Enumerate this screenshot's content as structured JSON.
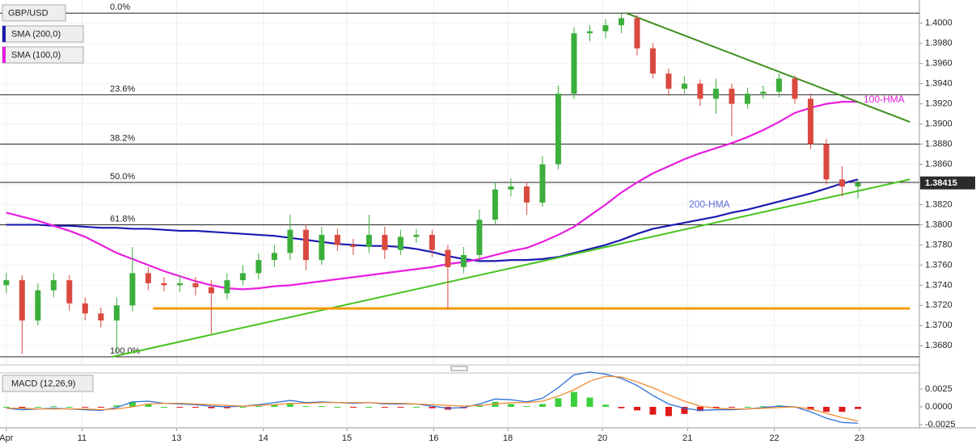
{
  "chart_data": [
    {
      "type": "candlestick",
      "symbol": "GBP/USD",
      "xlim": [
        -0.4,
        57.9
      ],
      "ylim": [
        1.3661,
        1.4023
      ],
      "yticks": [
        {
          "value": 1.4,
          "label": "1.4000"
        },
        {
          "value": 1.398,
          "label": "1.3980"
        },
        {
          "value": 1.396,
          "label": "1.3960"
        },
        {
          "value": 1.394,
          "label": "1.3940"
        },
        {
          "value": 1.392,
          "label": "1.3920"
        },
        {
          "value": 1.39,
          "label": "1.3900"
        },
        {
          "value": 1.388,
          "label": "1.3880"
        },
        {
          "value": 1.386,
          "label": "1.3860"
        },
        {
          "value": 1.384,
          "label": "1.3840"
        },
        {
          "value": 1.382,
          "label": "1.3820"
        },
        {
          "value": 1.38,
          "label": "1.3800"
        },
        {
          "value": 1.378,
          "label": "1.3780"
        },
        {
          "value": 1.376,
          "label": "1.3760"
        },
        {
          "value": 1.374,
          "label": "1.3740"
        },
        {
          "value": 1.372,
          "label": "1.3720"
        },
        {
          "value": 1.37,
          "label": "1.3700"
        },
        {
          "value": 1.368,
          "label": "1.3680"
        }
      ],
      "grid": true,
      "up_color": "#3cae3c",
      "down_color": "#d9493f",
      "candles": {
        "open": [
          1.374,
          1.3745,
          1.3705,
          1.3735,
          1.3745,
          1.3722,
          1.3712,
          1.3705,
          1.372,
          1.3752,
          1.3742,
          1.374,
          1.3742,
          1.3738,
          1.3732,
          1.3745,
          1.3752,
          1.3765,
          1.3772,
          1.3795,
          1.3765,
          1.379,
          1.378,
          1.3778,
          1.379,
          1.3775,
          1.3788,
          1.379,
          1.3775,
          1.3758,
          1.377,
          1.3805,
          1.3835,
          1.3838,
          1.3822,
          1.386,
          1.393,
          1.399,
          1.3992,
          1.3998,
          1.4005,
          1.3975,
          1.395,
          1.3935,
          1.394,
          1.3925,
          1.3935,
          1.392,
          1.393,
          1.3932,
          1.3945,
          1.3925,
          1.388,
          1.3845,
          1.3838
        ],
        "high": [
          1.3752,
          1.375,
          1.3742,
          1.3752,
          1.375,
          1.3728,
          1.3718,
          1.3728,
          1.3778,
          1.3758,
          1.3748,
          1.375,
          1.3748,
          1.3745,
          1.3752,
          1.376,
          1.3772,
          1.378,
          1.381,
          1.38,
          1.3798,
          1.3796,
          1.3786,
          1.381,
          1.3798,
          1.3795,
          1.3796,
          1.3795,
          1.378,
          1.3778,
          1.3815,
          1.3842,
          1.3846,
          1.3842,
          1.3868,
          1.3938,
          1.3996,
          1.3998,
          1.4004,
          1.401,
          1.4008,
          1.398,
          1.3955,
          1.3948,
          1.3944,
          1.3945,
          1.394,
          1.3936,
          1.3938,
          1.395,
          1.3948,
          1.393,
          1.3885,
          1.3858,
          1.3845
        ],
        "low": [
          1.3732,
          1.3672,
          1.37,
          1.3728,
          1.3715,
          1.3705,
          1.3698,
          1.3673,
          1.3714,
          1.3735,
          1.3734,
          1.3733,
          1.373,
          1.3692,
          1.3726,
          1.374,
          1.3746,
          1.3758,
          1.3765,
          1.3755,
          1.376,
          1.3774,
          1.377,
          1.3772,
          1.3766,
          1.377,
          1.3782,
          1.3768,
          1.3716,
          1.3752,
          1.3765,
          1.38,
          1.3828,
          1.381,
          1.3818,
          1.3855,
          1.3925,
          1.3982,
          1.3985,
          1.399,
          1.3968,
          1.3945,
          1.3928,
          1.393,
          1.3918,
          1.391,
          1.3888,
          1.3915,
          1.3925,
          1.3926,
          1.392,
          1.3875,
          1.384,
          1.3828,
          1.3826
        ],
        "close": [
          1.3745,
          1.3705,
          1.3735,
          1.3745,
          1.3722,
          1.3712,
          1.3705,
          1.372,
          1.3752,
          1.3742,
          1.374,
          1.3742,
          1.3738,
          1.3732,
          1.3745,
          1.3752,
          1.3765,
          1.3772,
          1.3795,
          1.3765,
          1.379,
          1.378,
          1.3778,
          1.379,
          1.3775,
          1.3788,
          1.379,
          1.3775,
          1.3758,
          1.377,
          1.3805,
          1.3835,
          1.3838,
          1.3822,
          1.386,
          1.393,
          1.399,
          1.3992,
          1.3998,
          1.4005,
          1.3975,
          1.395,
          1.3935,
          1.394,
          1.3925,
          1.3935,
          1.392,
          1.393,
          1.3932,
          1.3945,
          1.3925,
          1.388,
          1.3845,
          1.3838,
          1.38415
        ]
      },
      "series": [
        {
          "name": "SMA (200,0)",
          "color": "#1a1ab0",
          "values": [
            1.38,
            1.38,
            1.38,
            1.3799,
            1.3799,
            1.3798,
            1.3797,
            1.3797,
            1.3796,
            1.3796,
            1.3795,
            1.3794,
            1.3794,
            1.3793,
            1.3792,
            1.3791,
            1.379,
            1.3789,
            1.3787,
            1.3785,
            1.3783,
            1.3781,
            1.378,
            1.3779,
            1.3779,
            1.3778,
            1.3776,
            1.3773,
            1.3769,
            1.3766,
            1.3764,
            1.3764,
            1.3765,
            1.3765,
            1.3766,
            1.3768,
            1.3772,
            1.3776,
            1.378,
            1.3785,
            1.3791,
            1.3796,
            1.3799,
            1.3802,
            1.3805,
            1.3808,
            1.3812,
            1.3815,
            1.3819,
            1.3823,
            1.3827,
            1.3831,
            1.3836,
            1.3841,
            1.3845
          ]
        },
        {
          "name": "SMA (100,0)",
          "color": "#e81ee0",
          "values": [
            1.3812,
            1.3808,
            1.3804,
            1.3799,
            1.3794,
            1.3788,
            1.378,
            1.3772,
            1.3766,
            1.376,
            1.3754,
            1.3749,
            1.3744,
            1.374,
            1.3737,
            1.3736,
            1.3737,
            1.3739,
            1.374,
            1.3742,
            1.3744,
            1.3746,
            1.3748,
            1.375,
            1.3752,
            1.3754,
            1.3756,
            1.3758,
            1.3761,
            1.3763,
            1.3766,
            1.377,
            1.3774,
            1.3777,
            1.3783,
            1.379,
            1.3798,
            1.3809,
            1.382,
            1.3832,
            1.3842,
            1.3851,
            1.3858,
            1.3865,
            1.3871,
            1.3876,
            1.3881,
            1.3887,
            1.3894,
            1.3902,
            1.3911,
            1.3916,
            1.392,
            1.3922,
            1.3922
          ]
        }
      ],
      "fib_levels": [
        {
          "label": "0.0%",
          "value": 1.401
        },
        {
          "label": "23.6%",
          "value": 1.3929
        },
        {
          "label": "38.2%",
          "value": 1.388
        },
        {
          "label": "50.0%",
          "value": 1.3842
        },
        {
          "label": "61.8%",
          "value": 1.38
        },
        {
          "label": "100.0%",
          "value": 1.3669
        }
      ],
      "trendlines": [
        {
          "color": "#3f8f1f",
          "x": [
            39.3,
            57.3
          ],
          "y": [
            1.401,
            1.3902
          ]
        },
        {
          "color": "#44c41c",
          "x": [
            6.7,
            57.3
          ],
          "y": [
            1.3669,
            1.3845
          ]
        },
        {
          "color": "#f59a0a",
          "x": [
            9.3,
            57.3
          ],
          "y": [
            1.3717,
            1.3717
          ]
        }
      ],
      "annotations": [
        {
          "text": "100-HMA",
          "color": "#e81ee0"
        },
        {
          "text": "200-HMA",
          "color": "#5a6bd8"
        }
      ]
    },
    {
      "type": "macd",
      "title": "MACD (12,26,9)",
      "xlim": [
        -0.4,
        57.9
      ],
      "ylim": [
        -0.00295,
        0.00477
      ],
      "yticks": [
        0.0025,
        {
          "value": 0,
          "label": "0.0000"
        },
        -0.0025
      ],
      "xticks": [
        {
          "value": 0,
          "label": "Apr"
        },
        {
          "value": 4.8,
          "label": "11"
        },
        {
          "value": 10.8,
          "label": "13"
        },
        {
          "value": 16.3,
          "label": "14"
        },
        {
          "value": 21.6,
          "label": "15"
        },
        {
          "value": 27.1,
          "label": "16"
        },
        {
          "value": 31.8,
          "label": "18"
        },
        {
          "value": 37.8,
          "label": "20"
        },
        {
          "value": 43.2,
          "label": "21"
        },
        {
          "value": 48.7,
          "label": "22"
        },
        {
          "value": 54.1,
          "label": "23"
        }
      ],
      "macd_line": {
        "color": "#2e6fd8",
        "values": [
          -0.0002,
          -0.0004,
          -0.0003,
          -0.0002,
          -0.0003,
          -0.0004,
          -0.0005,
          -0.0001,
          0.0007,
          0.0008,
          0.0005,
          0.0004,
          0.0003,
          0.0001,
          0.0,
          0.0001,
          0.0003,
          0.0006,
          0.0009,
          0.0006,
          0.0007,
          0.0006,
          0.0005,
          0.0006,
          0.0004,
          0.0004,
          0.0004,
          0.0001,
          -0.0002,
          -0.0001,
          0.0004,
          0.0011,
          0.001,
          0.0007,
          0.0012,
          0.0027,
          0.0045,
          0.0049,
          0.0046,
          0.004,
          0.003,
          0.0016,
          0.0004,
          -0.0002,
          -0.0005,
          -0.0004,
          -0.0004,
          -0.0003,
          -0.0001,
          0.0001,
          0.0,
          -0.0007,
          -0.0016,
          -0.0022,
          -0.0023
        ]
      },
      "signal_line": {
        "color": "#f08a30",
        "values": [
          -0.0002,
          -0.0002,
          -0.0003,
          -0.0003,
          -0.0003,
          -0.0003,
          -0.0004,
          -0.0003,
          0.0,
          0.0004,
          0.0005,
          0.0005,
          0.0004,
          0.0003,
          0.0002,
          0.0001,
          0.0002,
          0.0003,
          0.0005,
          0.0005,
          0.0006,
          0.0006,
          0.0006,
          0.0006,
          0.0005,
          0.0005,
          0.0004,
          0.0003,
          0.0002,
          0.0001,
          0.0002,
          0.0004,
          0.0006,
          0.0006,
          0.0008,
          0.0015,
          0.0024,
          0.0036,
          0.0043,
          0.0042,
          0.0035,
          0.0027,
          0.0017,
          0.0008,
          0.0001,
          -0.0002,
          -0.0003,
          -0.0003,
          -0.0002,
          -0.0001,
          0.0,
          -0.0003,
          -0.0009,
          -0.0015,
          -0.002
        ]
      },
      "histogram": {
        "pos_color": "#3ccf3c",
        "neg_color": "#e01a1a",
        "values": [
          0.0,
          -0.0002,
          0.0,
          0.0001,
          0.0,
          -0.0001,
          -0.0001,
          0.0002,
          0.0007,
          0.0004,
          0.0,
          -0.0001,
          -0.0001,
          -0.0002,
          -0.0002,
          0.0,
          0.0001,
          0.0003,
          0.0004,
          0.0001,
          0.0001,
          0.0,
          -0.0001,
          0.0,
          -0.0001,
          -0.0001,
          0.0,
          -0.0002,
          -0.0004,
          -0.0002,
          0.0002,
          0.0007,
          0.0004,
          0.0001,
          0.0004,
          0.0012,
          0.0021,
          0.0013,
          0.0003,
          -0.0002,
          -0.0005,
          -0.0011,
          -0.0013,
          -0.001,
          -0.0006,
          -0.0002,
          -0.0001,
          0.0,
          0.0001,
          0.0002,
          0.0,
          -0.0004,
          -0.0007,
          -0.0007,
          -0.0003
        ]
      }
    }
  ]
}
